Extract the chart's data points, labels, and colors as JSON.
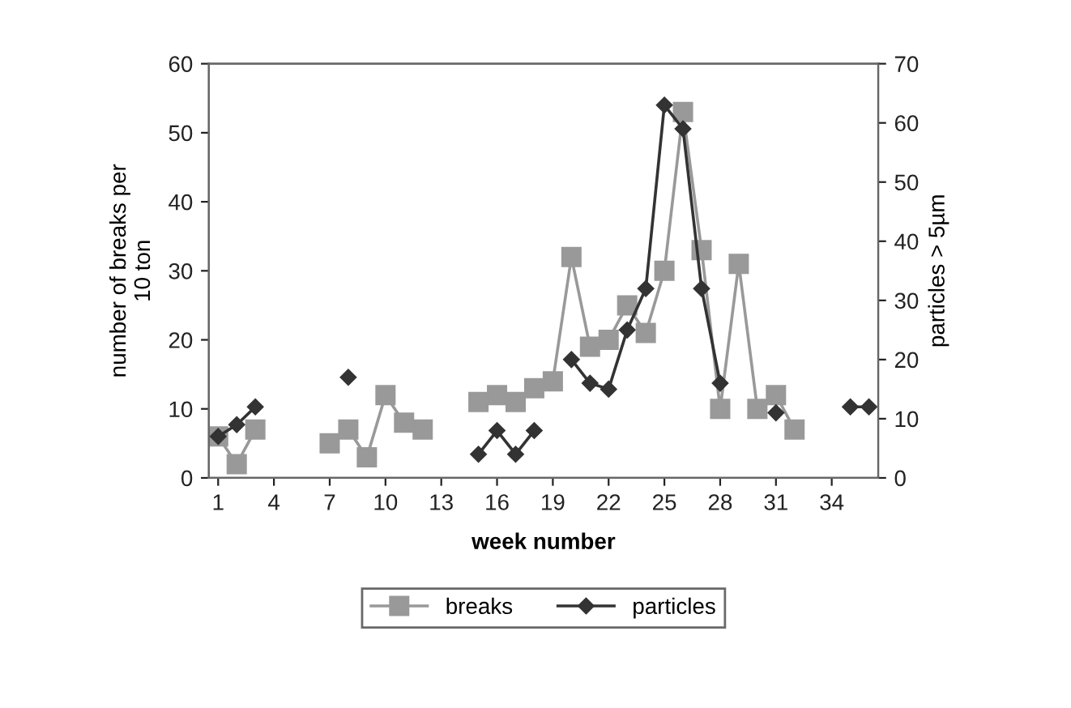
{
  "chart_data": {
    "type": "line",
    "xlabel": "week number",
    "ylabel": "number of breaks per\n10 ton",
    "y2label": "particles > 5µm",
    "x": [
      1,
      2,
      3,
      4,
      5,
      6,
      7,
      8,
      9,
      10,
      11,
      12,
      13,
      14,
      15,
      16,
      17,
      18,
      19,
      20,
      21,
      22,
      23,
      24,
      25,
      26,
      27,
      28,
      29,
      30,
      31,
      32,
      33,
      34,
      35,
      36
    ],
    "series": [
      {
        "name": "breaks",
        "color": "#999999",
        "marker": "square",
        "values": [
          6,
          2,
          7,
          null,
          null,
          null,
          5,
          7,
          3,
          12,
          8,
          7,
          null,
          null,
          11,
          12,
          11,
          13,
          14,
          32,
          19,
          20,
          25,
          21,
          30,
          53,
          33,
          10,
          31,
          10,
          12,
          7,
          null,
          null,
          null,
          null
        ]
      },
      {
        "name": "particles",
        "color": "#333333",
        "marker": "diamond",
        "axis": "y2",
        "values": [
          7,
          9,
          12,
          null,
          null,
          null,
          null,
          17,
          null,
          null,
          null,
          null,
          null,
          null,
          4,
          8,
          4,
          8,
          null,
          20,
          16,
          15,
          25,
          32,
          63,
          59,
          32,
          16,
          null,
          null,
          11,
          null,
          null,
          null,
          12,
          12
        ]
      }
    ],
    "xlim": [
      0.5,
      36.5
    ],
    "xticks": [
      1,
      4,
      7,
      10,
      13,
      16,
      19,
      22,
      25,
      28,
      31,
      34
    ],
    "ylim": [
      0,
      60
    ],
    "yticks": [
      0,
      10,
      20,
      30,
      40,
      50,
      60
    ],
    "y2lim": [
      0,
      70
    ],
    "y2ticks": [
      0,
      10,
      20,
      30,
      40,
      50,
      60,
      70
    ],
    "grid": false,
    "legend": "bottom",
    "line_style": "solid"
  }
}
